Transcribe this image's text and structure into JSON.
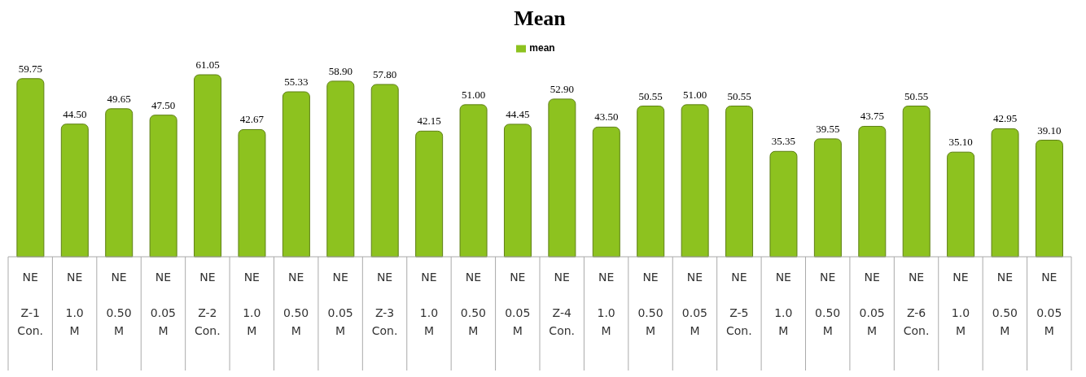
{
  "chart_data": {
    "type": "bar",
    "title": "Mean",
    "legend": "top",
    "categories": [
      "NE\nZ-1 Con.",
      "NE\n1.0 M",
      "NE\n0.50 M",
      "NE\n0.05 M",
      "NE\nZ-2 Con.",
      "NE\n1.0 M",
      "NE\n0.50 M",
      "NE\n0.05 M",
      "NE\nZ-3 Con.",
      "NE\n1.0 M",
      "NE\n0.50 M",
      "NE\n0.05 M",
      "NE\nZ-4 Con.",
      "NE\n1.0 M",
      "NE\n0.50 M",
      "NE\n0.05 M",
      "NE\nZ-5 Con.",
      "NE\n1.0 M",
      "NE\n0.50 M",
      "NE\n0.05 M",
      "NE\nZ-6 Con.",
      "NE\n1.0 M",
      "NE\n0.50 M",
      "NE\n0.05 M"
    ],
    "series": [
      {
        "name": "mean",
        "color": "#8dc21f",
        "values": [
          59.75,
          44.5,
          49.65,
          47.5,
          61.05,
          42.67,
          55.33,
          58.9,
          57.8,
          42.15,
          51.0,
          44.45,
          52.9,
          43.5,
          50.55,
          51.0,
          50.55,
          35.35,
          39.55,
          43.75,
          50.55,
          35.1,
          42.95,
          39.1
        ],
        "value_labels": [
          "59.75",
          "44.50",
          "49.65",
          "47.50",
          "61.05",
          "42.67",
          "55.33",
          "58.90",
          "57.80",
          "42.15",
          "51.00",
          "44.45",
          "52.90",
          "43.50",
          "50.55",
          "51.00",
          "50.55",
          "35.35",
          "39.55",
          "43.75",
          "50.55",
          "35.10",
          "42.95",
          "39.10"
        ]
      }
    ]
  }
}
